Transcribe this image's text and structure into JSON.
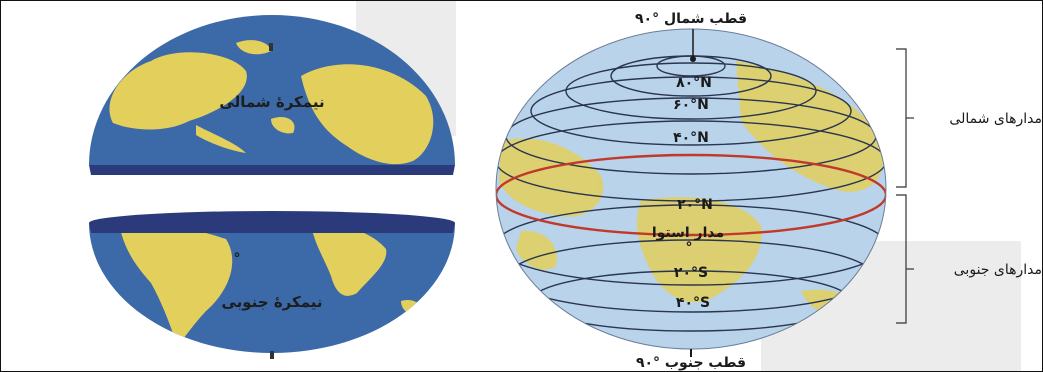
{
  "left_hemispheres": {
    "northern_label": "نیمکرهٔ شمالی",
    "southern_label": "نیمکرهٔ جنوبی",
    "degree_mark": "°"
  },
  "globe": {
    "north_pole_label": "قطب شمال °۹۰",
    "south_pole_label": "قطب جنوب °۹۰",
    "latitudes": [
      {
        "label": "۸۰°N"
      },
      {
        "label": "۶۰°N"
      },
      {
        "label": "۴۰°N"
      },
      {
        "label": "۲۰°N"
      },
      {
        "label": "مدار استوا"
      },
      {
        "label": "°"
      },
      {
        "label": "۲۰°S"
      },
      {
        "label": "۴۰°S"
      }
    ]
  },
  "brackets": {
    "northern_label": "مدارهای شمالی",
    "southern_label": "مدارهای جنوبی"
  },
  "colors": {
    "ocean_dark": "#3c6aa8",
    "ocean_light": "#b8d3ea",
    "land": "#e3cf5c",
    "equator": "#c0392b",
    "watermark": "#dcdcdc"
  }
}
